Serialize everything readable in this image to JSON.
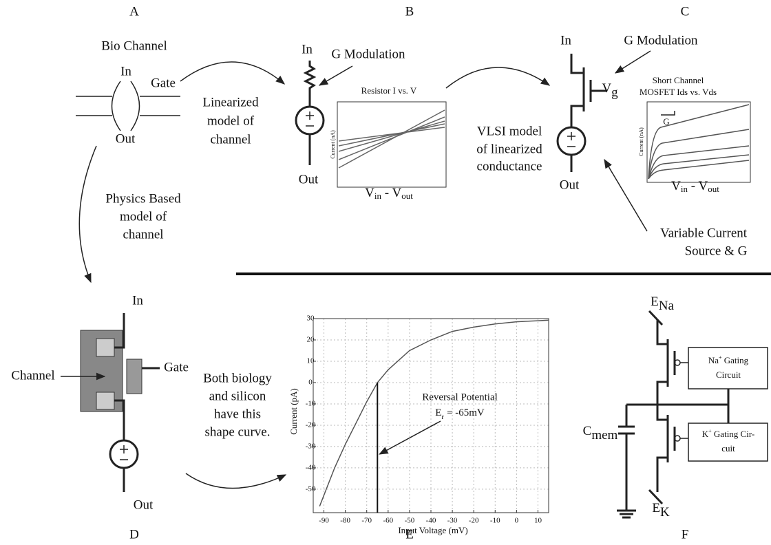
{
  "labels": [
    "A",
    "B",
    "C",
    "D",
    "E",
    "F"
  ],
  "panel_a": {
    "title": "Bio Channel",
    "in": "In",
    "gate": "Gate",
    "out": "Out"
  },
  "arrow_ab": [
    "Linearized",
    "model of",
    "channel"
  ],
  "panel_b": {
    "in": "In",
    "out": "Out",
    "modulation": "G Modulation",
    "plot_title": "Resistor I vs. V",
    "plot_ylabel": "Current (nA)",
    "plot_xlabel": {
      "v1": "V",
      "s1": "in",
      "mid": " - V",
      "s2": "out"
    }
  },
  "arrow_bc": [
    "VLSI model",
    "of linearized",
    "conductance"
  ],
  "panel_c": {
    "in": "In",
    "out": "Out",
    "gate": {
      "v": "V",
      "s": "g"
    },
    "modulation": "G Modulation",
    "plot_title": [
      "Short Channel",
      "MOSFET Ids vs. Vds"
    ],
    "plot_ylabel": "Current (nA)",
    "plot_g": "G",
    "plot_xlabel": {
      "v1": "V",
      "s1": "in",
      "mid": " - V",
      "s2": "out"
    },
    "source": [
      "Variable Current",
      "Source & G"
    ]
  },
  "arrow_ad": [
    "Physics Based",
    "model of",
    "channel"
  ],
  "panel_d": {
    "in": "In",
    "gate": "Gate",
    "channel": "Channel",
    "out": "Out"
  },
  "arrow_de": [
    "Both biology",
    "and silicon",
    "have this",
    "shape curve."
  ],
  "chart_data": {
    "type": "line",
    "xlabel": "Input Voltage (mV)",
    "ylabel": "Current (pA)",
    "color": "#555555",
    "x": [
      -92,
      -85,
      -80,
      -75,
      -70,
      -65,
      -60,
      -50,
      -40,
      -30,
      -20,
      -10,
      0,
      10,
      15
    ],
    "values": [
      -58,
      -40,
      -29,
      -19,
      -9,
      0,
      6,
      15,
      20,
      24,
      26,
      27.5,
      28.5,
      29,
      29.3
    ],
    "xlim": [
      -95,
      15
    ],
    "ylim": [
      -61,
      30
    ],
    "xticks": [
      -90,
      -80,
      -70,
      -60,
      -50,
      -40,
      -30,
      -20,
      -10,
      0,
      10
    ],
    "yticks": [
      -50,
      -40,
      -30,
      -20,
      -10,
      0,
      10,
      20,
      30
    ],
    "grid": true,
    "annotation": {
      "value": -65,
      "title": "Reversal Potential",
      "symbol": "E",
      "sub": "r",
      "text": "= -65mV"
    }
  },
  "panel_f": {
    "ena": {
      "v": "E",
      "s": "Na"
    },
    "ek": {
      "v": "E",
      "s": "K"
    },
    "cmem": {
      "v": "C",
      "s": "mem"
    },
    "na_box": {
      "ion": "Na",
      "sup": "+",
      "rest": " Gating",
      "line2": "Circuit"
    },
    "k_box": {
      "ion": "K",
      "sup": "+",
      "rest": " Gating Cir-",
      "line2": "cuit"
    }
  }
}
